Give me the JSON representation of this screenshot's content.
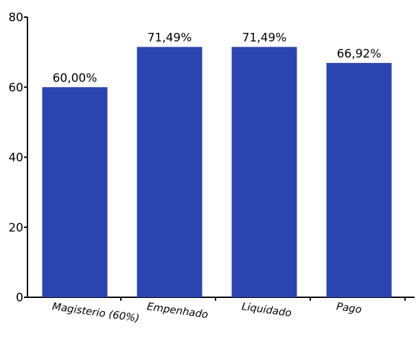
{
  "chart_data": {
    "type": "bar",
    "categories": [
      "Magisterio (60%)",
      "Empenhado",
      "Liquidado",
      "Pago"
    ],
    "values": [
      60.0,
      71.49,
      71.49,
      66.92
    ],
    "data_labels": [
      "60,00%",
      "71,49%",
      "71,49%",
      "66,92%"
    ],
    "ylim": [
      0,
      80
    ],
    "yticks": [
      0,
      20,
      40,
      60,
      80
    ],
    "ytick_labels": [
      "0",
      "20",
      "40",
      "60",
      "80"
    ],
    "bar_color": "#2b44b0",
    "grid": false,
    "legend": "none",
    "title": "",
    "xlabel": "",
    "ylabel": ""
  }
}
